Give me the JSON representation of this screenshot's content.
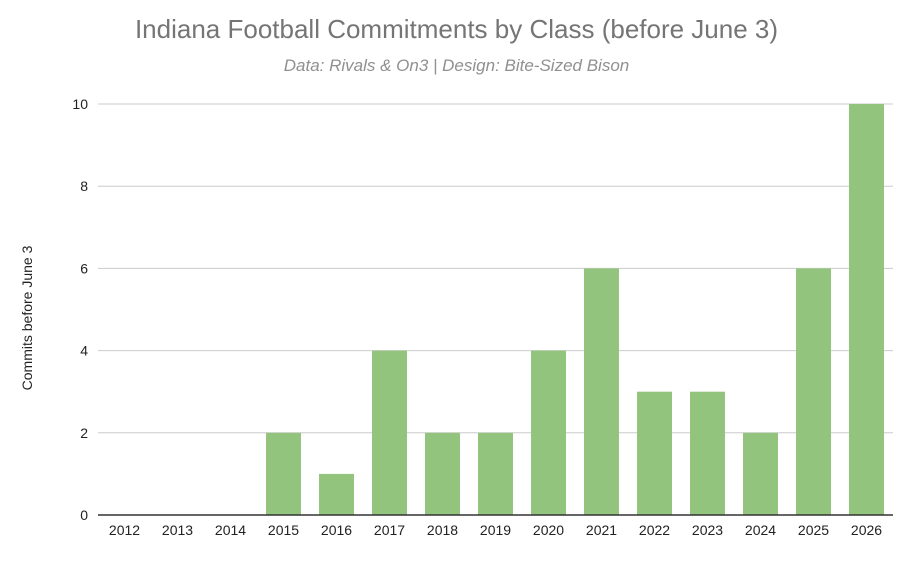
{
  "chart_data": {
    "type": "bar",
    "title": "Indiana Football Commitments by Class (before June 3)",
    "subtitle": "Data: Rivals & On3 | Design: Bite-Sized Bison",
    "xlabel": "",
    "ylabel": "Commits before June 3",
    "categories": [
      "2012",
      "2013",
      "2014",
      "2015",
      "2016",
      "2017",
      "2018",
      "2019",
      "2020",
      "2021",
      "2022",
      "2023",
      "2024",
      "2025",
      "2026"
    ],
    "values": [
      0,
      0,
      0,
      2,
      1,
      4,
      2,
      2,
      4,
      6,
      3,
      3,
      2,
      6,
      10
    ],
    "ylim": [
      0,
      10
    ],
    "yticks": [
      "0",
      "2",
      "4",
      "6",
      "8",
      "10"
    ],
    "grid": true,
    "legend": "none",
    "bar_color": "#93c47d",
    "grid_color": "#cccccc",
    "axis_color": "#333333"
  }
}
